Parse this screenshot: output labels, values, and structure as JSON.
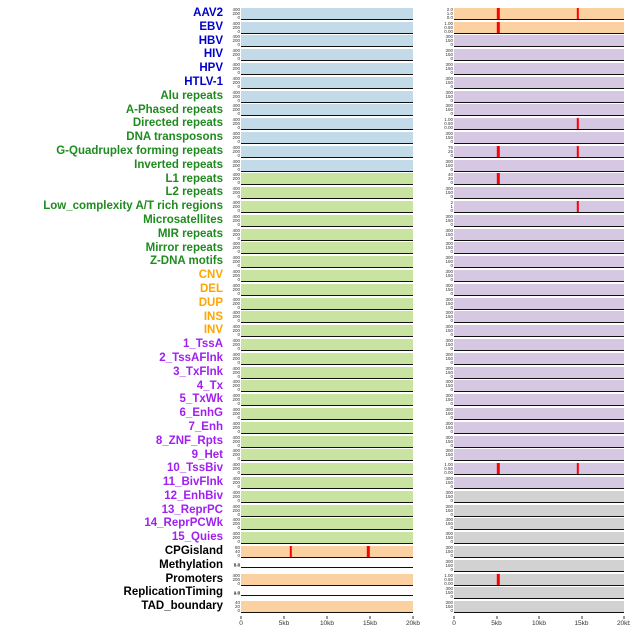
{
  "figure": {
    "label_colors": {
      "virus": "#0000CC",
      "repeat": "#1F8B1F",
      "sv": "#FFA500",
      "chromatin": "#A020F0",
      "annotation": "#000000"
    },
    "plot_colors": {
      "blue": "#C3DBE9",
      "green": "#C9E3A1",
      "orange": "#FBD1A2",
      "purple": "#D6C8E3",
      "gray": "#D2D2D2",
      "white": "#FFFFFF"
    },
    "spike_color": "#FF0000",
    "axis_color": "#111111",
    "default_yticks": {
      "left": [
        "400",
        "200",
        "0"
      ],
      "right": [
        "300",
        "150",
        "0"
      ]
    }
  },
  "chart_data": {
    "type": "line",
    "subtype": "small-multiples",
    "x_ticks": [
      "0",
      "5kb",
      "10kb",
      "15kb",
      "20kb"
    ],
    "x_window_kb": 20,
    "columns": [
      "left",
      "right"
    ],
    "rows": [
      {
        "label": "AAV2",
        "group": "virus",
        "left": {
          "bg": "blue"
        },
        "right": {
          "bg": "orange",
          "spikes": [
            0.26,
            0.73
          ],
          "yticks": [
            "2.0",
            "1.0",
            "0.0"
          ]
        }
      },
      {
        "label": "EBV",
        "group": "virus",
        "left": {
          "bg": "blue"
        },
        "right": {
          "bg": "orange",
          "spikes": [
            0.26
          ],
          "yticks": [
            "1.00",
            "0.50",
            "0.00"
          ]
        }
      },
      {
        "label": "HBV",
        "group": "virus",
        "left": {
          "bg": "blue"
        },
        "right": {
          "bg": "purple"
        }
      },
      {
        "label": "HIV",
        "group": "virus",
        "left": {
          "bg": "blue"
        },
        "right": {
          "bg": "purple"
        }
      },
      {
        "label": "HPV",
        "group": "virus",
        "left": {
          "bg": "blue"
        },
        "right": {
          "bg": "purple"
        }
      },
      {
        "label": "HTLV-1",
        "group": "virus",
        "left": {
          "bg": "blue"
        },
        "right": {
          "bg": "purple"
        }
      },
      {
        "label": "Alu repeats",
        "group": "repeat",
        "left": {
          "bg": "blue"
        },
        "right": {
          "bg": "purple"
        }
      },
      {
        "label": "A-Phased repeats",
        "group": "repeat",
        "left": {
          "bg": "blue"
        },
        "right": {
          "bg": "purple"
        }
      },
      {
        "label": "Directed repeats",
        "group": "repeat",
        "left": {
          "bg": "blue"
        },
        "right": {
          "bg": "purple",
          "spikes": [
            0.73
          ],
          "yticks": [
            "1.00",
            "0.50",
            "0.00"
          ]
        }
      },
      {
        "label": "DNA transposons",
        "group": "repeat",
        "left": {
          "bg": "blue"
        },
        "right": {
          "bg": "purple"
        }
      },
      {
        "label": "G-Quadruplex forming repeats",
        "group": "repeat",
        "left": {
          "bg": "blue"
        },
        "right": {
          "bg": "purple",
          "spikes": [
            0.26,
            0.73
          ],
          "yticks": [
            "75",
            "25",
            "0"
          ]
        }
      },
      {
        "label": "Inverted repeats",
        "group": "repeat",
        "left": {
          "bg": "blue"
        },
        "right": {
          "bg": "purple"
        }
      },
      {
        "label": "L1 repeats",
        "group": "repeat",
        "left": {
          "bg": "green"
        },
        "right": {
          "bg": "purple",
          "spikes": [
            0.26
          ],
          "yticks": [
            "40",
            "20",
            "0"
          ]
        }
      },
      {
        "label": "L2 repeats",
        "group": "repeat",
        "left": {
          "bg": "green"
        },
        "right": {
          "bg": "purple"
        }
      },
      {
        "label": "Low_complexity A/T rich regions",
        "group": "repeat",
        "left": {
          "bg": "green"
        },
        "right": {
          "bg": "purple",
          "spikes": [
            0.73
          ],
          "yticks": [
            "2",
            "1",
            "0"
          ]
        }
      },
      {
        "label": "Microsatellites",
        "group": "repeat",
        "left": {
          "bg": "green"
        },
        "right": {
          "bg": "purple"
        }
      },
      {
        "label": "MIR repeats",
        "group": "repeat",
        "left": {
          "bg": "green"
        },
        "right": {
          "bg": "purple"
        }
      },
      {
        "label": "Mirror repeats",
        "group": "repeat",
        "left": {
          "bg": "green"
        },
        "right": {
          "bg": "purple"
        }
      },
      {
        "label": "Z-DNA motifs",
        "group": "repeat",
        "left": {
          "bg": "green"
        },
        "right": {
          "bg": "purple"
        }
      },
      {
        "label": "CNV",
        "group": "sv",
        "left": {
          "bg": "green"
        },
        "right": {
          "bg": "purple"
        }
      },
      {
        "label": "DEL",
        "group": "sv",
        "left": {
          "bg": "green"
        },
        "right": {
          "bg": "purple"
        }
      },
      {
        "label": "DUP",
        "group": "sv",
        "left": {
          "bg": "green"
        },
        "right": {
          "bg": "purple"
        }
      },
      {
        "label": "INS",
        "group": "sv",
        "left": {
          "bg": "green"
        },
        "right": {
          "bg": "purple"
        }
      },
      {
        "label": "INV",
        "group": "sv",
        "left": {
          "bg": "green"
        },
        "right": {
          "bg": "purple"
        }
      },
      {
        "label": "1_TssA",
        "group": "chromatin",
        "left": {
          "bg": "green"
        },
        "right": {
          "bg": "purple"
        }
      },
      {
        "label": "2_TssAFlnk",
        "group": "chromatin",
        "left": {
          "bg": "green"
        },
        "right": {
          "bg": "purple"
        }
      },
      {
        "label": "3_TxFlnk",
        "group": "chromatin",
        "left": {
          "bg": "green"
        },
        "right": {
          "bg": "purple"
        }
      },
      {
        "label": "4_Tx",
        "group": "chromatin",
        "left": {
          "bg": "green"
        },
        "right": {
          "bg": "purple"
        }
      },
      {
        "label": "5_TxWk",
        "group": "chromatin",
        "left": {
          "bg": "green"
        },
        "right": {
          "bg": "purple"
        }
      },
      {
        "label": "6_EnhG",
        "group": "chromatin",
        "left": {
          "bg": "green"
        },
        "right": {
          "bg": "purple"
        }
      },
      {
        "label": "7_Enh",
        "group": "chromatin",
        "left": {
          "bg": "green"
        },
        "right": {
          "bg": "purple"
        }
      },
      {
        "label": "8_ZNF_Rpts",
        "group": "chromatin",
        "left": {
          "bg": "green"
        },
        "right": {
          "bg": "purple"
        }
      },
      {
        "label": "9_Het",
        "group": "chromatin",
        "left": {
          "bg": "green"
        },
        "right": {
          "bg": "purple"
        }
      },
      {
        "label": "10_TssBiv",
        "group": "chromatin",
        "left": {
          "bg": "green"
        },
        "right": {
          "bg": "purple",
          "spikes": [
            0.26,
            0.73
          ],
          "yticks": [
            "1.00",
            "0.50",
            "0.00"
          ]
        }
      },
      {
        "label": "11_BivFlnk",
        "group": "chromatin",
        "left": {
          "bg": "green"
        },
        "right": {
          "bg": "purple"
        }
      },
      {
        "label": "12_EnhBiv",
        "group": "chromatin",
        "left": {
          "bg": "green"
        },
        "right": {
          "bg": "gray"
        }
      },
      {
        "label": "13_ReprPC",
        "group": "chromatin",
        "left": {
          "bg": "green"
        },
        "right": {
          "bg": "gray"
        }
      },
      {
        "label": "14_ReprPCWk",
        "group": "chromatin",
        "left": {
          "bg": "green"
        },
        "right": {
          "bg": "gray"
        }
      },
      {
        "label": "15_Quies",
        "group": "chromatin",
        "left": {
          "bg": "green"
        },
        "right": {
          "bg": "gray"
        }
      },
      {
        "label": "CPGisland",
        "group": "annotation",
        "left": {
          "bg": "orange",
          "spikes": [
            0.29,
            0.74
          ],
          "yticks": [
            "80",
            "40",
            "0"
          ]
        },
        "right": {
          "bg": "gray"
        }
      },
      {
        "label": "Methylation",
        "group": "annotation",
        "left": {
          "bg": "white",
          "thin": true,
          "yticks": [
            "0.8",
            "0.0"
          ]
        },
        "right": {
          "bg": "gray"
        }
      },
      {
        "label": "Promoters",
        "group": "annotation",
        "left": {
          "bg": "orange"
        },
        "right": {
          "bg": "gray",
          "spikes": [
            0.26
          ],
          "yticks": [
            "1.00",
            "0.50",
            "0.00"
          ]
        }
      },
      {
        "label": "ReplicationTiming",
        "group": "annotation",
        "left": {
          "bg": "white",
          "thin": true,
          "yticks": [
            "1.0",
            "0.0"
          ]
        },
        "right": {
          "bg": "gray"
        }
      },
      {
        "label": "TAD_boundary",
        "group": "annotation",
        "left": {
          "bg": "orange",
          "yticks": [
            "40",
            "20",
            "0"
          ]
        },
        "right": {
          "bg": "gray"
        }
      }
    ]
  }
}
